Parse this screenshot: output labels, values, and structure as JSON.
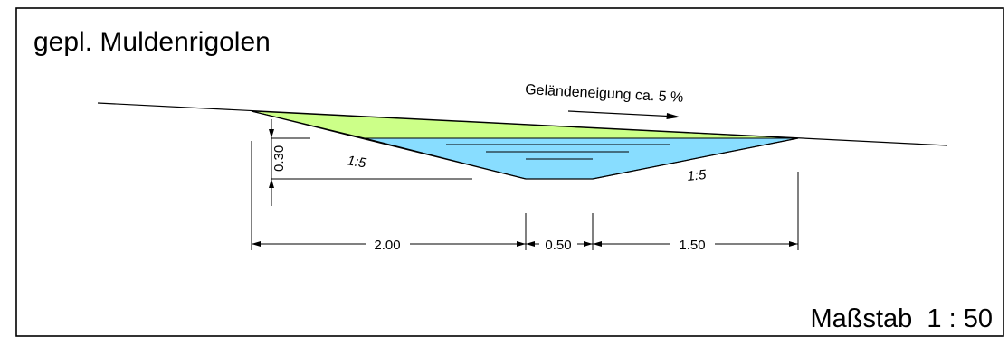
{
  "title": "gepl. Muldenrigolen",
  "terrain_slope_label": "Geländeneigung ca. 5 %",
  "side_slope_left": "1:5",
  "side_slope_right": "1:5",
  "dimensions": {
    "depth": "0.30",
    "left_width": "2.00",
    "bottom_width": "0.50",
    "right_width": "1.50"
  },
  "scale_label": "Maßstab  1 : 50",
  "colors": {
    "fill_area": "#ccff88",
    "water": "#88ddff",
    "line": "#000000",
    "background": "#ffffff"
  }
}
